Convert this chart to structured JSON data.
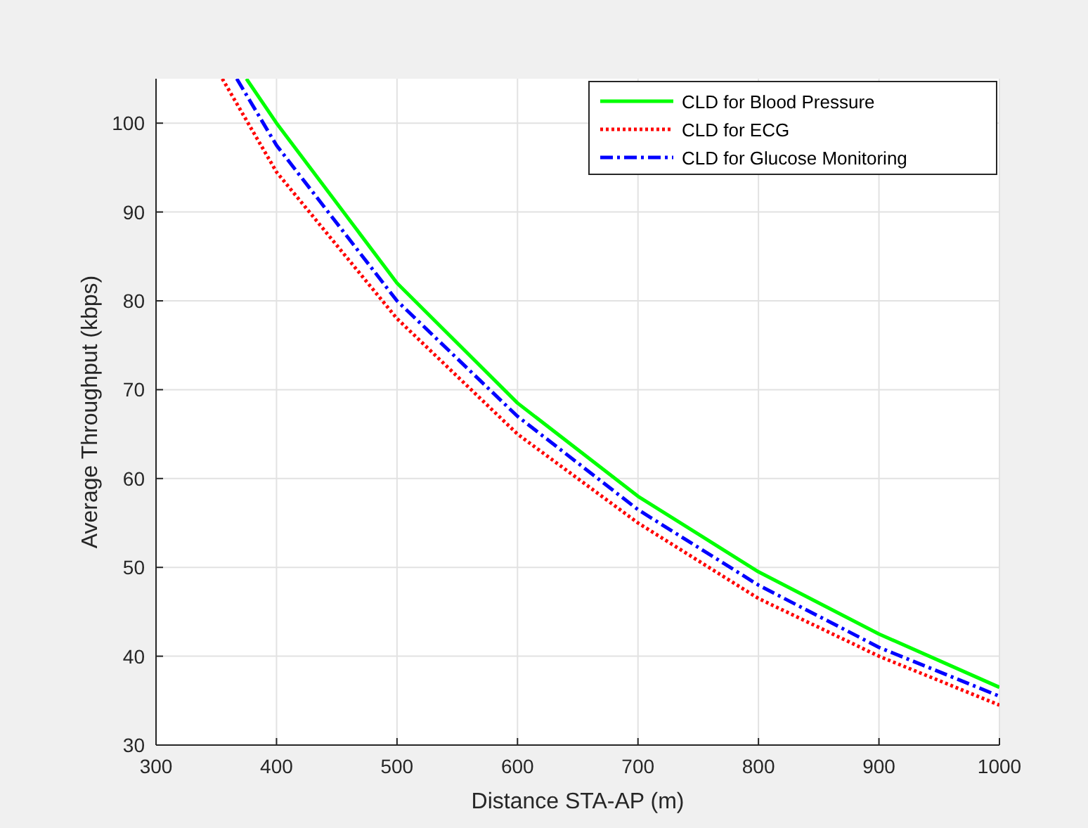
{
  "chart_data": {
    "type": "line",
    "xlabel": "Distance STA-AP (m)",
    "ylabel": "Average Throughput (kbps)",
    "xlim": [
      300,
      1000
    ],
    "xticks": [
      300,
      400,
      500,
      600,
      700,
      800,
      900,
      1000
    ],
    "ylim": [
      30,
      105
    ],
    "yticks": [
      30,
      40,
      50,
      60,
      70,
      80,
      90,
      100
    ],
    "grid": true,
    "legend": "top right",
    "series": [
      {
        "name": "CLD for Blood Pressure",
        "color": "#00ff00",
        "line_style": "solid",
        "x": [
          375,
          400,
          500,
          600,
          700,
          800,
          900,
          1000
        ],
        "values": [
          105,
          100,
          82,
          68.5,
          58,
          49.5,
          42.5,
          36.5
        ]
      },
      {
        "name": "CLD for ECG",
        "color": "#ff0000",
        "line_style": "dotted",
        "x": [
          355,
          400,
          500,
          600,
          700,
          800,
          900,
          1000
        ],
        "values": [
          105,
          94.5,
          78,
          65,
          55,
          46.5,
          40,
          34.5
        ]
      },
      {
        "name": "CLD for Glucose Monitoring",
        "color": "#0000ff",
        "line_style": "dashdot",
        "x": [
          367,
          400,
          500,
          600,
          700,
          800,
          900,
          1000
        ],
        "values": [
          105,
          97.5,
          80,
          67,
          56.5,
          48,
          41,
          35.5
        ]
      }
    ]
  }
}
